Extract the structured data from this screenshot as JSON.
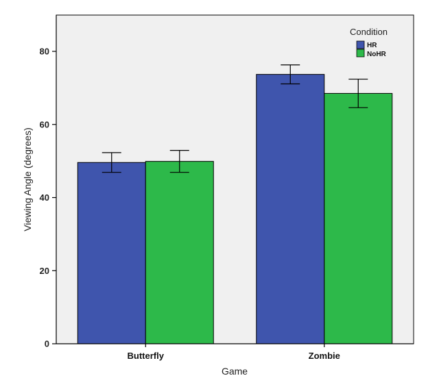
{
  "chart_data": {
    "type": "bar",
    "title": "",
    "xlabel": "Game",
    "ylabel": "Viewing Angle (degrees)",
    "categories": [
      "Butterfly",
      "Zombie"
    ],
    "ylim": [
      0,
      85
    ],
    "yticks": [
      0,
      20,
      40,
      60,
      80
    ],
    "ytick_labels": [
      "0",
      "20",
      "40",
      "60",
      "80"
    ],
    "grid": false,
    "legend": {
      "title": "Condition",
      "position": "top-right"
    },
    "series": [
      {
        "name": "HR",
        "color": "#3f55ad",
        "values": [
          49.6,
          73.7
        ],
        "err_low": [
          46.9,
          71.1
        ],
        "err_high": [
          52.3,
          76.3
        ]
      },
      {
        "name": "NoHR",
        "color": "#2db94a",
        "values": [
          49.9,
          68.5
        ],
        "err_low": [
          46.9,
          64.6
        ],
        "err_high": [
          52.9,
          72.4
        ]
      }
    ]
  }
}
